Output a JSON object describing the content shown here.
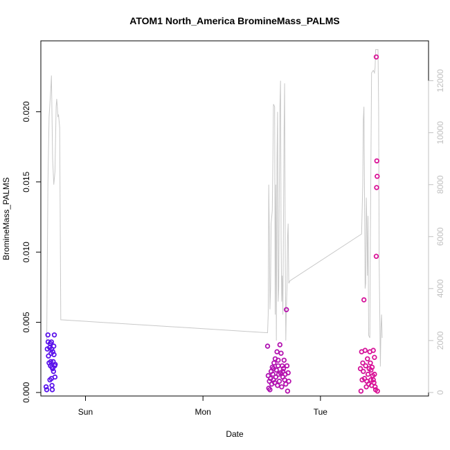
{
  "chart_data": {
    "type": "scatter",
    "title": "ATOM1 North_America BromineMass_PALMS",
    "xlabel": "Date",
    "ylabel": "BromineMass_PALMS",
    "xlim": [
      -0.38,
      2.92
    ],
    "ylim": [
      -0.00025,
      0.02505
    ],
    "y2lim": [
      -135,
      13535
    ],
    "x_ticks": [
      {
        "label": "Sun",
        "value": 0.0
      },
      {
        "label": "Mon",
        "value": 1.0
      },
      {
        "label": "Tue",
        "value": 2.0
      }
    ],
    "y_ticks": [
      {
        "label": "0.000",
        "value": 0.0
      },
      {
        "label": "0.005",
        "value": 0.005
      },
      {
        "label": "0.010",
        "value": 0.01
      },
      {
        "label": "0.015",
        "value": 0.015
      },
      {
        "label": "0.020",
        "value": 0.02
      }
    ],
    "y2_ticks": [
      {
        "label": "0",
        "value": 0
      },
      {
        "label": "2000",
        "value": 2000
      },
      {
        "label": "4000",
        "value": 4000
      },
      {
        "label": "6000",
        "value": 6000
      },
      {
        "label": "8000",
        "value": 8000
      },
      {
        "label": "10000",
        "value": 10000
      },
      {
        "label": "12000",
        "value": 12000
      }
    ],
    "grid": false,
    "secondary_line": {
      "axis": "right",
      "color": "#c8c8c8",
      "points": [
        [
          -0.33,
          2000
        ],
        [
          -0.32,
          8000
        ],
        [
          -0.31,
          10600
        ],
        [
          -0.295,
          11700
        ],
        [
          -0.29,
          12200
        ],
        [
          -0.28,
          9000
        ],
        [
          -0.27,
          8000
        ],
        [
          -0.26,
          8500
        ],
        [
          -0.25,
          11000
        ],
        [
          -0.245,
          11300
        ],
        [
          -0.24,
          11000
        ],
        [
          -0.235,
          10600
        ],
        [
          -0.23,
          10700
        ],
        [
          -0.22,
          10200
        ],
        [
          -0.21,
          2800
        ],
        [
          1.55,
          2300
        ],
        [
          1.555,
          3000
        ],
        [
          1.56,
          8000
        ],
        [
          1.565,
          6000
        ],
        [
          1.57,
          3200
        ],
        [
          1.575,
          4000
        ],
        [
          1.58,
          6500
        ],
        [
          1.59,
          7000
        ],
        [
          1.595,
          9000
        ],
        [
          1.6,
          11100
        ],
        [
          1.61,
          11000
        ],
        [
          1.615,
          3000
        ],
        [
          1.62,
          8000
        ],
        [
          1.625,
          2000
        ],
        [
          1.63,
          9000
        ],
        [
          1.635,
          10800
        ],
        [
          1.64,
          3500
        ],
        [
          1.645,
          4000
        ],
        [
          1.65,
          8000
        ],
        [
          1.655,
          11000
        ],
        [
          1.66,
          12000
        ],
        [
          1.665,
          6000
        ],
        [
          1.67,
          3500
        ],
        [
          1.675,
          4500
        ],
        [
          1.68,
          3000
        ],
        [
          1.69,
          10000
        ],
        [
          1.695,
          11900
        ],
        [
          1.7,
          5500
        ],
        [
          1.705,
          2000
        ],
        [
          1.71,
          3300
        ],
        [
          1.715,
          4000
        ],
        [
          1.72,
          6000
        ],
        [
          1.725,
          6500
        ],
        [
          1.73,
          4200
        ],
        [
          1.74,
          4300
        ],
        [
          2.35,
          6100
        ],
        [
          2.36,
          8000
        ],
        [
          2.365,
          10500
        ],
        [
          2.37,
          11000
        ],
        [
          2.38,
          4000
        ],
        [
          2.385,
          4200
        ],
        [
          2.39,
          7500
        ],
        [
          2.395,
          6500
        ],
        [
          2.4,
          4500
        ],
        [
          2.405,
          6800
        ],
        [
          2.41,
          2200
        ],
        [
          2.42,
          2100
        ],
        [
          2.425,
          6000
        ],
        [
          2.435,
          12300
        ],
        [
          2.45,
          12400
        ],
        [
          2.46,
          12300
        ],
        [
          2.465,
          12500
        ],
        [
          2.47,
          13200
        ],
        [
          2.48,
          13200
        ],
        [
          2.49,
          13200
        ],
        [
          2.495,
          11000
        ],
        [
          2.5,
          5000
        ],
        [
          2.51,
          1000
        ],
        [
          2.515,
          2500
        ],
        [
          2.52,
          3000
        ],
        [
          2.525,
          2100
        ]
      ]
    },
    "series": [
      {
        "color_start": "#5511ee",
        "color_end": "#ee1188",
        "points": [
          [
            -0.335,
            0.0004
          ],
          [
            -0.33,
            0.0002
          ],
          [
            -0.325,
            0.0031
          ],
          [
            -0.32,
            0.0041
          ],
          [
            -0.318,
            0.0036
          ],
          [
            -0.315,
            0.0026
          ],
          [
            -0.31,
            0.0021
          ],
          [
            -0.305,
            0.0032
          ],
          [
            -0.303,
            0.0009
          ],
          [
            -0.3,
            0.0035
          ],
          [
            -0.298,
            0.0019
          ],
          [
            -0.295,
            0.0022
          ],
          [
            -0.293,
            0.0028
          ],
          [
            -0.29,
            0.0036
          ],
          [
            -0.288,
            0.0031
          ],
          [
            -0.285,
            0.0018
          ],
          [
            -0.283,
            0.0002
          ],
          [
            -0.28,
            0.0017
          ],
          [
            -0.278,
            0.0029
          ],
          [
            -0.275,
            0.0022
          ],
          [
            -0.272,
            0.0015
          ],
          [
            -0.27,
            0.0033
          ],
          [
            -0.268,
            0.0027
          ],
          [
            -0.265,
            0.0041
          ],
          [
            -0.262,
            0.0019
          ],
          [
            -0.26,
            0.0011
          ],
          [
            -0.258,
            0.002
          ],
          [
            -0.285,
            0.0005
          ],
          [
            -0.29,
            0.001
          ],
          [
            1.55,
            0.0033
          ],
          [
            1.555,
            0.0012
          ],
          [
            1.56,
            0.0003
          ],
          [
            1.565,
            0.0008
          ],
          [
            1.57,
            0.0002
          ],
          [
            1.575,
            0.001
          ],
          [
            1.58,
            0.0015
          ],
          [
            1.585,
            0.0006
          ],
          [
            1.59,
            0.0018
          ],
          [
            1.595,
            0.0013
          ],
          [
            1.6,
            0.0009
          ],
          [
            1.605,
            0.0021
          ],
          [
            1.61,
            0.0007
          ],
          [
            1.615,
            0.0024
          ],
          [
            1.62,
            0.0011
          ],
          [
            1.625,
            0.0016
          ],
          [
            1.63,
            0.0029
          ],
          [
            1.635,
            0.0005
          ],
          [
            1.64,
            0.0019
          ],
          [
            1.645,
            0.0013
          ],
          [
            1.65,
            0.0008
          ],
          [
            1.655,
            0.0034
          ],
          [
            1.66,
            0.0014
          ],
          [
            1.665,
            0.0028
          ],
          [
            1.67,
            0.0004
          ],
          [
            1.675,
            0.0019
          ],
          [
            1.68,
            0.0011
          ],
          [
            1.685,
            0.0017
          ],
          [
            1.69,
            0.0023
          ],
          [
            1.695,
            0.0009
          ],
          [
            1.7,
            0.0013
          ],
          [
            1.705,
            0.0006
          ],
          [
            1.71,
            0.0059
          ],
          [
            1.715,
            0.0019
          ],
          [
            1.72,
            0.0001
          ],
          [
            1.725,
            0.0014
          ],
          [
            1.73,
            0.0008
          ],
          [
            1.6,
            0.0017
          ],
          [
            1.64,
            0.0023
          ],
          [
            1.68,
            0.0015
          ],
          [
            2.34,
            0.0017
          ],
          [
            2.345,
            0.0001
          ],
          [
            2.35,
            0.0029
          ],
          [
            2.355,
            0.0009
          ],
          [
            2.36,
            0.0021
          ],
          [
            2.365,
            0.0015
          ],
          [
            2.37,
            0.0066
          ],
          [
            2.375,
            0.001
          ],
          [
            2.38,
            0.003
          ],
          [
            2.385,
            0.0019
          ],
          [
            2.39,
            0.0004
          ],
          [
            2.395,
            0.0008
          ],
          [
            2.4,
            0.0024
          ],
          [
            2.405,
            0.0013
          ],
          [
            2.41,
            0.0006
          ],
          [
            2.415,
            0.0017
          ],
          [
            2.42,
            0.0029
          ],
          [
            2.425,
            0.0021
          ],
          [
            2.43,
            0.0009
          ],
          [
            2.435,
            0.0005
          ],
          [
            2.44,
            0.0018
          ],
          [
            2.445,
            0.0012
          ],
          [
            2.45,
            0.003
          ],
          [
            2.455,
            0.0007
          ],
          [
            2.46,
            0.0025
          ],
          [
            2.465,
            0.0004
          ],
          [
            2.47,
            0.0002
          ],
          [
            2.475,
            0.0097
          ],
          [
            2.478,
            0.0146
          ],
          [
            2.48,
            0.0165
          ],
          [
            2.483,
            0.0154
          ],
          [
            2.485,
            0.0001
          ],
          [
            2.475,
            0.0239
          ],
          [
            2.43,
            0.0016
          ],
          [
            2.45,
            0.0009
          ],
          [
            2.46,
            0.0013
          ]
        ]
      }
    ]
  }
}
